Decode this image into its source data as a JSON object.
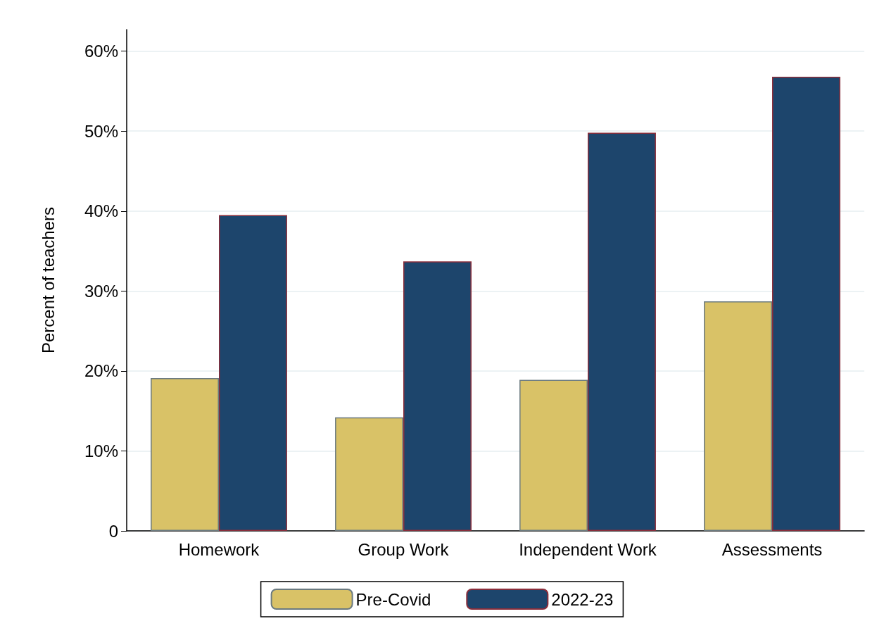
{
  "chart_data": {
    "type": "bar",
    "ylabel": "Percent of teachers",
    "categories": [
      "Homework",
      "Group Work",
      "Independent Work",
      "Assessments"
    ],
    "series": [
      {
        "name": "Pre-Covid",
        "color": "#d9c267",
        "values": [
          19.1,
          14.2,
          18.9,
          28.7
        ]
      },
      {
        "name": "2022-23",
        "color": "#1d456c",
        "values": [
          39.5,
          33.7,
          49.8,
          56.8
        ]
      }
    ],
    "ylim": [
      0,
      62.7
    ],
    "yticks": [
      {
        "value": 0,
        "label": "0"
      },
      {
        "value": 10,
        "label": "10%"
      },
      {
        "value": 20,
        "label": "20%"
      },
      {
        "value": 30,
        "label": "30%"
      },
      {
        "value": 40,
        "label": "40%"
      },
      {
        "value": 50,
        "label": "50%"
      },
      {
        "value": 60,
        "label": "60%"
      }
    ],
    "grid": "y",
    "legend": "bottom"
  }
}
